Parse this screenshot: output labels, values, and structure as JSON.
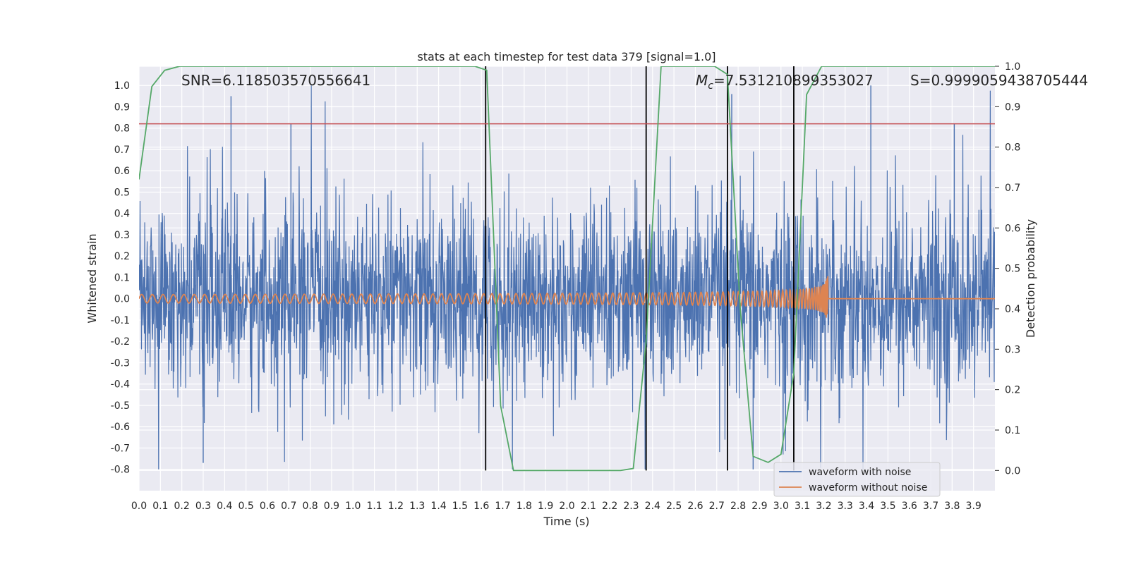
{
  "chart_data": {
    "type": "line",
    "title": "stats at each timestep for test data 379 [signal=1.0]",
    "xlabel": "Time (s)",
    "ylabel": "Whitened strain",
    "ylabel_right": "Detection probability",
    "xlim": [
      0.0,
      4.0
    ],
    "ylim": [
      -0.9,
      1.09
    ],
    "ylim_right": [
      -0.05,
      1.0
    ],
    "x_ticks": [
      "0.0",
      "0.1",
      "0.2",
      "0.3",
      "0.4",
      "0.5",
      "0.6",
      "0.7",
      "0.8",
      "0.9",
      "1.0",
      "1.1",
      "1.2",
      "1.3",
      "1.4",
      "1.5",
      "1.6",
      "1.7",
      "1.8",
      "1.9",
      "2.0",
      "2.1",
      "2.2",
      "2.3",
      "2.4",
      "2.5",
      "2.6",
      "2.7",
      "2.8",
      "2.9",
      "3.0",
      "3.1",
      "3.2",
      "3.3",
      "3.4",
      "3.5",
      "3.6",
      "3.7",
      "3.8",
      "3.9"
    ],
    "y_ticks": [
      "-0.8",
      "-0.7",
      "-0.6",
      "-0.5",
      "-0.4",
      "-0.3",
      "-0.2",
      "-0.1",
      "0.0",
      "0.1",
      "0.2",
      "0.3",
      "0.4",
      "0.5",
      "0.6",
      "0.7",
      "0.8",
      "0.9",
      "1.0"
    ],
    "y_right_ticks": [
      "0.0",
      "0.1",
      "0.2",
      "0.3",
      "0.4",
      "0.5",
      "0.6",
      "0.7",
      "0.8",
      "0.9",
      "1.0"
    ],
    "annotations": {
      "snr": "SNR=6.118503570556641",
      "mc_symbol": "M",
      "mc_sub": "c",
      "mc_value": "=7.531210899353027",
      "s": "S=0.9999059438705444"
    },
    "threshold": {
      "value": 0.82,
      "color": "#c44e52"
    },
    "vertical_lines": [
      1.62,
      2.37,
      2.75,
      3.06
    ],
    "detection_probability": {
      "x": [
        0.0,
        0.06,
        0.12,
        0.19,
        0.25,
        0.5,
        1.0,
        1.5,
        1.57,
        1.625,
        1.69,
        1.75,
        1.8,
        2.0,
        2.25,
        2.31,
        2.37,
        2.44,
        2.5,
        2.69,
        2.75,
        2.81,
        2.87,
        2.94,
        3.0,
        3.06,
        3.12,
        3.19,
        3.25,
        3.5,
        3.75,
        4.0
      ],
      "y": [
        0.72,
        0.95,
        0.99,
        1.0,
        1.0,
        1.0,
        1.0,
        1.0,
        1.0,
        0.99,
        0.16,
        0.0,
        0.0,
        0.0,
        0.0,
        0.005,
        0.32,
        1.0,
        1.0,
        1.0,
        0.98,
        0.4,
        0.035,
        0.02,
        0.04,
        0.24,
        0.93,
        1.0,
        1.0,
        1.0,
        1.0,
        1.0
      ],
      "color": "#55a868"
    },
    "noise_peaks": [
      {
        "x": 0.43,
        "y": 0.95
      },
      {
        "x": 0.71,
        "y": 0.82
      },
      {
        "x": 1.62,
        "y": 0.94
      },
      {
        "x": 2.77,
        "y": 0.96
      },
      {
        "x": 3.42,
        "y": 1.0
      },
      {
        "x": 3.81,
        "y": 0.82
      },
      {
        "x": 1.62,
        "y": -0.8
      },
      {
        "x": 2.87,
        "y": -0.8
      },
      {
        "x": 0.3,
        "y": -0.77
      }
    ],
    "series": [
      {
        "name": "waveform with noise",
        "color": "#4c72b0"
      },
      {
        "name": "waveform without noise",
        "color": "#dd8452"
      }
    ],
    "chirp": {
      "merger_time": 3.22,
      "peak_amplitude": 0.2,
      "start_amplitude": 0.02
    },
    "colors": {
      "background": "#eaeaf2",
      "grid": "#ffffff",
      "vline": "#000000"
    }
  }
}
